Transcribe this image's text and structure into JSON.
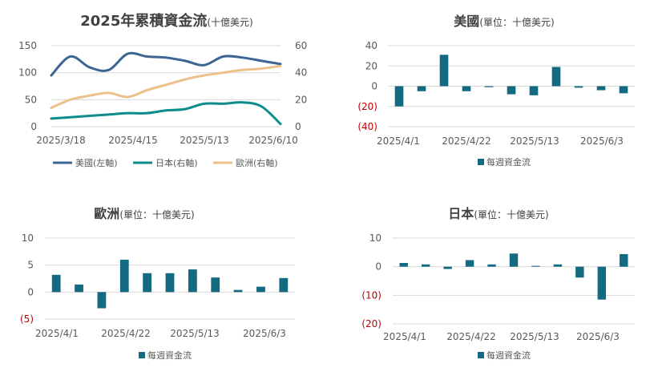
{
  "colors": {
    "us": "#3c6592",
    "japan": "#0e8c8c",
    "europe": "#ecc089",
    "bar": "#146a80",
    "grid": "#d9d9d9",
    "text": "#595959",
    "title": "#404040",
    "negative": "#c00000"
  },
  "chart_data": [
    {
      "type": "line",
      "title": "2025年累積資金流",
      "title_unit": "(十億美元)",
      "x_tick_labels": [
        "2025/3/18",
        "2025/4/15",
        "2025/5/13",
        "2025/6/10"
      ],
      "y_left_ticks": [
        "0",
        "50",
        "100",
        "150"
      ],
      "y_right_ticks": [
        "0",
        "20",
        "40",
        "60"
      ],
      "ylim_left": [
        0,
        150
      ],
      "ylim_right": [
        0,
        60
      ],
      "x": [
        0,
        1,
        2,
        3,
        4,
        5,
        6,
        7,
        8,
        9,
        10,
        11,
        12
      ],
      "series": [
        {
          "name": "美國(左軸)",
          "key": "us",
          "axis": "left",
          "values": [
            95,
            130,
            110,
            105,
            135,
            130,
            128,
            122,
            114,
            130,
            128,
            122,
            116
          ]
        },
        {
          "name": "日本(右軸)",
          "key": "japan",
          "axis": "right",
          "values": [
            6,
            7,
            8,
            9,
            10,
            10,
            12,
            13,
            17,
            17,
            18,
            15,
            2
          ]
        },
        {
          "name": "歐洲(右軸)",
          "key": "europe",
          "axis": "right",
          "values": [
            14,
            20,
            23,
            25,
            22,
            27,
            31,
            35,
            38,
            40,
            42,
            43,
            45
          ]
        }
      ],
      "grid": true,
      "legend": "bottom"
    },
    {
      "type": "bar",
      "title": "美國",
      "title_unit": "(單位：十億美元)",
      "values": [
        -20,
        -5,
        31,
        -5,
        -1,
        -8,
        -9,
        19,
        -1.5,
        -4,
        -7
      ],
      "x_tick_labels": [
        "2025/4/1",
        "2025/4/22",
        "2025/5/13",
        "2025/6/3"
      ],
      "y_ticks": [
        "40",
        "20",
        "0",
        "(20)",
        "(40)"
      ],
      "ylim": [
        -40,
        40
      ],
      "series_name": "每週資金流",
      "grid": true,
      "legend": "bottom"
    },
    {
      "type": "bar",
      "title": "歐洲",
      "title_unit": "(單位：十億美元)",
      "values": [
        3.2,
        1.4,
        -3,
        6,
        3.5,
        3.5,
        4.2,
        2.7,
        0.4,
        1,
        2.6
      ],
      "x_tick_labels": [
        "2025/4/1",
        "2025/4/22",
        "2025/5/13",
        "2025/6/3"
      ],
      "y_ticks": [
        "10",
        "5",
        "0",
        "(5)"
      ],
      "ylim": [
        -5,
        10
      ],
      "series_name": "每週資金流",
      "grid": true,
      "legend": "bottom"
    },
    {
      "type": "bar",
      "title": "日本",
      "title_unit": "(單位：十億美元)",
      "values": [
        1.3,
        0.8,
        -0.8,
        2.3,
        0.8,
        4.6,
        0.3,
        0.8,
        -3.8,
        -11.5,
        4.4
      ],
      "x_tick_labels": [
        "2025/4/1",
        "2025/4/22",
        "2025/5/13",
        "2025/6/3"
      ],
      "y_ticks": [
        "10",
        "0",
        "(10)",
        "(20)"
      ],
      "ylim": [
        -20,
        10
      ],
      "series_name": "每週資金流",
      "grid": true,
      "legend": "bottom"
    }
  ]
}
